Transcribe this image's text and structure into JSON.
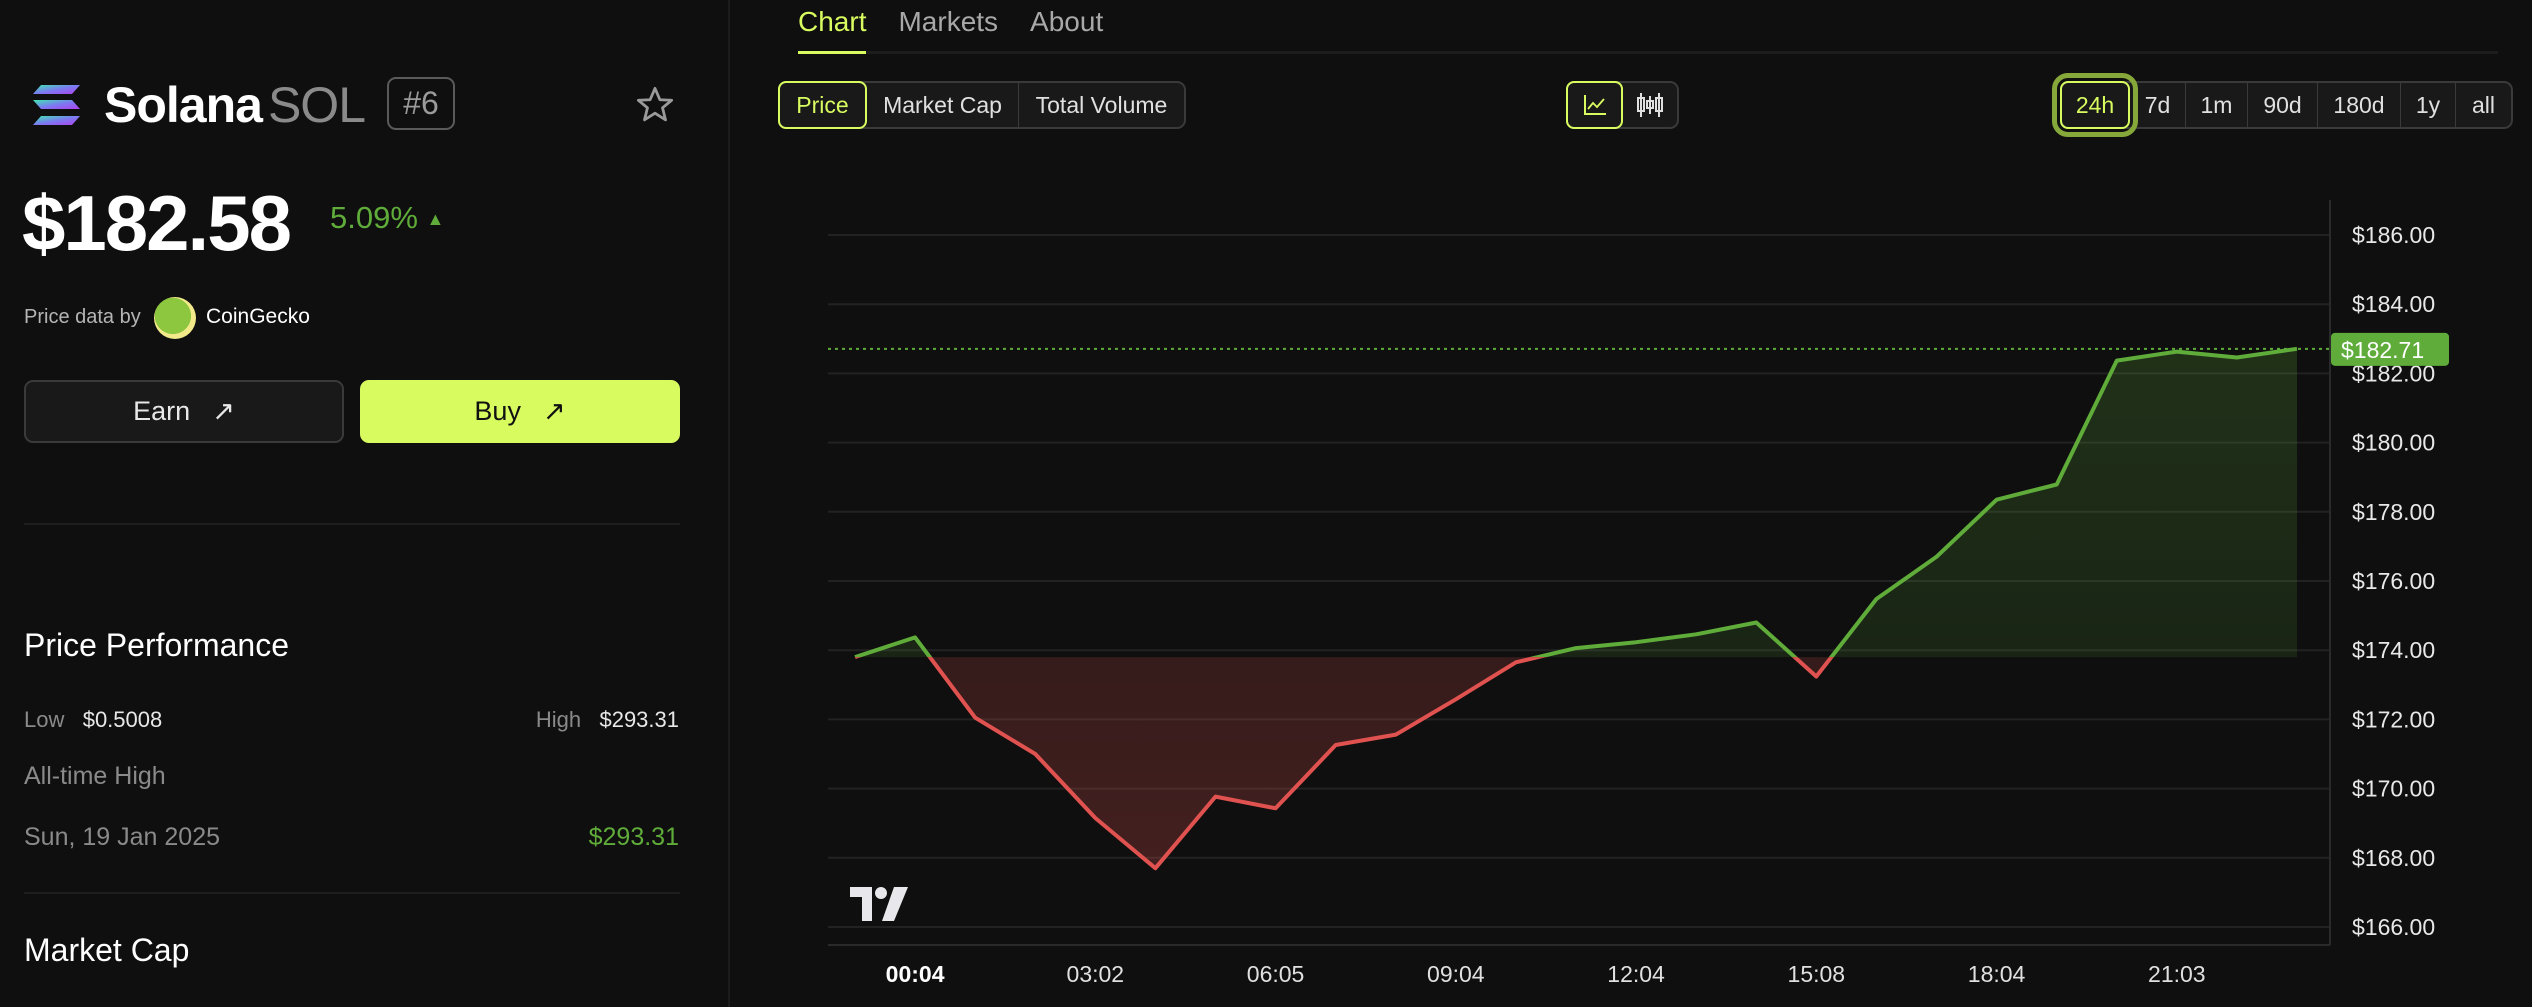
{
  "coin": {
    "name": "Solana",
    "symbol": "SOL",
    "rank": "#6",
    "price": "$182.58",
    "change": "5.09%",
    "change_arrow": "▲",
    "favorite_icon": "star-outline-icon"
  },
  "source": {
    "label": "Price data by",
    "name": "CoinGecko"
  },
  "actions": {
    "earn": "Earn",
    "buy": "Buy",
    "arrow": "↗"
  },
  "performance": {
    "title": "Price Performance",
    "low_label": "Low",
    "low_value": "$0.5008",
    "high_label": "High",
    "high_value": "$293.31",
    "ath_label": "All-time High",
    "ath_date": "Sun, 19 Jan 2025",
    "ath_value": "$293.31"
  },
  "market_cap": {
    "title": "Market Cap"
  },
  "tabs": [
    {
      "label": "Chart",
      "active": true
    },
    {
      "label": "Markets"
    },
    {
      "label": "About"
    }
  ],
  "metric_options": [
    {
      "label": "Price",
      "selected": true
    },
    {
      "label": "Market Cap"
    },
    {
      "label": "Total Volume"
    }
  ],
  "chart_types": [
    {
      "icon": "line-chart-icon",
      "selected": true
    },
    {
      "icon": "candlestick-chart-icon"
    }
  ],
  "ranges": [
    {
      "label": "24h",
      "selected": true
    },
    {
      "label": "7d"
    },
    {
      "label": "1m"
    },
    {
      "label": "90d"
    },
    {
      "label": "180d"
    },
    {
      "label": "1y"
    },
    {
      "label": "all"
    }
  ],
  "colors": {
    "accent": "#d8fb5f",
    "up": "#5fac3a",
    "down": "#e0524f",
    "background": "#0f0f0f"
  },
  "chart_data": {
    "type": "line",
    "x": [
      "23:04",
      "00:04",
      "01:04",
      "02:04",
      "03:04",
      "04:04",
      "05:04",
      "06:04",
      "07:04",
      "08:04",
      "09:04",
      "10:04",
      "11:04",
      "12:04",
      "13:04",
      "14:04",
      "15:04",
      "16:04",
      "17:04",
      "18:04",
      "19:04",
      "20:04",
      "21:04",
      "22:04",
      "23:04"
    ],
    "values": [
      173.8,
      174.37,
      172.05,
      171.0,
      169.15,
      167.7,
      169.77,
      169.43,
      171.26,
      171.56,
      172.58,
      173.65,
      174.06,
      174.23,
      174.46,
      174.8,
      173.24,
      175.48,
      176.7,
      178.35,
      178.79,
      182.37,
      182.63,
      182.46,
      182.71
    ],
    "baseline": 173.8,
    "ylim": [
      165.5,
      187
    ],
    "y_ticks": [
      "$166.00",
      "$168.00",
      "$170.00",
      "$172.00",
      "$174.00",
      "$176.00",
      "$178.00",
      "$180.00",
      "$182.00",
      "$184.00",
      "$186.00"
    ],
    "y_tick_values": [
      166,
      168,
      170,
      172,
      174,
      176,
      178,
      180,
      182,
      184,
      186
    ],
    "x_ticks": [
      {
        "label": "00:04",
        "at": 1,
        "bold": true
      },
      {
        "label": "03:02",
        "at": 4
      },
      {
        "label": "06:05",
        "at": 7
      },
      {
        "label": "09:04",
        "at": 10
      },
      {
        "label": "12:04",
        "at": 13
      },
      {
        "label": "15:08",
        "at": 16
      },
      {
        "label": "18:04",
        "at": 19
      },
      {
        "label": "21:03",
        "at": 22
      }
    ],
    "last_price_label": "$182.71",
    "last_price": 182.71,
    "grid": true,
    "watermark": "TV"
  }
}
